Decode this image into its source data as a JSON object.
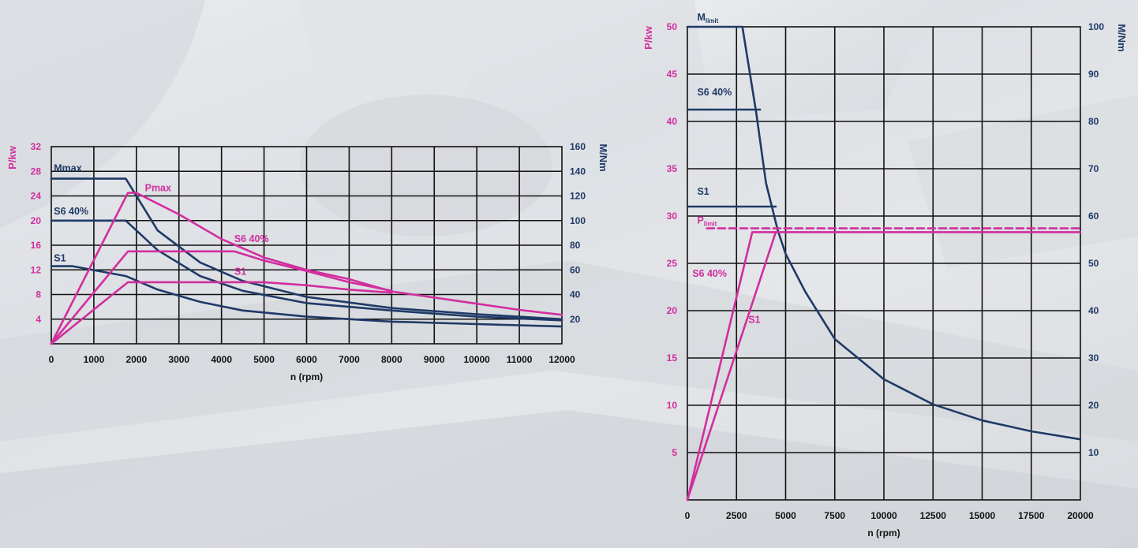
{
  "colors": {
    "torque": "#1f3a66",
    "power": "#d12e9e",
    "grid": "#111111"
  },
  "chart_data": [
    {
      "type": "line",
      "xlabel": "n (rpm)",
      "ylabel_left": "P/kw",
      "ylabel_right": "M/Nm",
      "xlim": [
        0,
        12000
      ],
      "ylim_left": [
        0,
        32
      ],
      "ylim_right": [
        0,
        160
      ],
      "x_ticks": [
        "0",
        "1000",
        "2000",
        "3000",
        "4000",
        "5000",
        "6000",
        "7000",
        "8000",
        "9000",
        "10000",
        "11000",
        "12000"
      ],
      "y_left_ticks": [
        "4",
        "8",
        "12",
        "16",
        "20",
        "24",
        "28",
        "32"
      ],
      "y_right_ticks": [
        "20",
        "40",
        "60",
        "80",
        "100",
        "120",
        "140",
        "160"
      ],
      "grid": true,
      "series": [
        {
          "name": "Mmax",
          "axis": "right",
          "color": "torque",
          "points": [
            [
              0,
              134
            ],
            [
              1750,
              134
            ],
            [
              2500,
              92
            ],
            [
              3500,
              66
            ],
            [
              4500,
              51
            ],
            [
              6000,
              38
            ],
            [
              8000,
              29
            ],
            [
              10000,
              24
            ],
            [
              12000,
              20
            ]
          ]
        },
        {
          "name": "S6 40%",
          "axis": "right",
          "color": "torque",
          "points": [
            [
              0,
              100
            ],
            [
              1750,
              100
            ],
            [
              2500,
              76
            ],
            [
              3500,
              55
            ],
            [
              4500,
              43
            ],
            [
              6000,
              33
            ],
            [
              8000,
              27
            ],
            [
              10000,
              22
            ],
            [
              12000,
              19
            ]
          ]
        },
        {
          "name": "S1",
          "axis": "right",
          "color": "torque",
          "points": [
            [
              0,
              63
            ],
            [
              500,
              63
            ],
            [
              1750,
              55
            ],
            [
              2500,
              44
            ],
            [
              3500,
              34
            ],
            [
              4500,
              27
            ],
            [
              6000,
              22
            ],
            [
              8000,
              18
            ],
            [
              10000,
              16
            ],
            [
              12000,
              14
            ]
          ]
        },
        {
          "name": "Pmax",
          "axis": "left",
          "color": "power",
          "points": [
            [
              0,
              0
            ],
            [
              1800,
              24.5
            ],
            [
              2000,
              24.5
            ],
            [
              3000,
              21
            ],
            [
              4000,
              17
            ],
            [
              5000,
              14
            ],
            [
              6000,
              12
            ],
            [
              7000,
              10.5
            ],
            [
              8000,
              8.5
            ],
            [
              9000,
              7.5
            ],
            [
              10000,
              6.5
            ],
            [
              11000,
              5.5
            ],
            [
              12000,
              4.7
            ]
          ]
        },
        {
          "name": "S6 40%",
          "axis": "left",
          "color": "power",
          "points": [
            [
              0,
              0
            ],
            [
              1800,
              15
            ],
            [
              4300,
              15
            ],
            [
              5000,
              13.5
            ],
            [
              6000,
              11.8
            ],
            [
              7000,
              10
            ],
            [
              8000,
              8.6
            ]
          ]
        },
        {
          "name": "S1",
          "axis": "left",
          "color": "power",
          "points": [
            [
              0,
              0
            ],
            [
              1800,
              10
            ],
            [
              5000,
              10
            ],
            [
              6000,
              9.5
            ],
            [
              7000,
              8.8
            ],
            [
              8000,
              8.3
            ]
          ]
        }
      ],
      "labels": [
        {
          "text": "Mmax",
          "color": "torque",
          "x": 60,
          "yr": 140
        },
        {
          "text": "S6 40%",
          "color": "torque",
          "x": 60,
          "yr": 105
        },
        {
          "text": "S1",
          "color": "torque",
          "x": 60,
          "yr": 67
        },
        {
          "text": "Pmax",
          "color": "power",
          "x": 2200,
          "yl": 24.8
        },
        {
          "text": "S6 40%",
          "color": "power",
          "x": 4300,
          "yl": 16.5
        },
        {
          "text": "S1",
          "color": "power",
          "x": 4300,
          "yl": 11.2
        }
      ]
    },
    {
      "type": "line",
      "xlabel": "n (rpm)",
      "ylabel_left": "P/kw",
      "ylabel_right": "M/Nm",
      "xlim": [
        0,
        20000
      ],
      "ylim_left": [
        0,
        50
      ],
      "ylim_right": [
        0,
        100
      ],
      "x_ticks": [
        "0",
        "2500",
        "5000",
        "7500",
        "10000",
        "12500",
        "15000",
        "17500",
        "20000"
      ],
      "y_left_ticks": [
        "5",
        "10",
        "15",
        "20",
        "25",
        "30",
        "35",
        "40",
        "45",
        "50"
      ],
      "y_right_ticks": [
        "10",
        "20",
        "30",
        "40",
        "50",
        "60",
        "70",
        "80",
        "90",
        "100"
      ],
      "grid": true,
      "series": [
        {
          "name": "Mlimit",
          "axis": "right",
          "color": "torque",
          "points": [
            [
              0,
              100
            ],
            [
              2800,
              100
            ],
            [
              3500,
              82
            ],
            [
              4000,
              67
            ],
            [
              4600,
              57
            ],
            [
              5000,
              52
            ],
            [
              6000,
              44
            ],
            [
              7500,
              34
            ],
            [
              10000,
              25.5
            ],
            [
              12500,
              20.2
            ],
            [
              15000,
              16.8
            ],
            [
              17500,
              14.5
            ],
            [
              20000,
              12.8
            ]
          ]
        },
        {
          "name": "S6 40%",
          "axis": "right",
          "color": "torque",
          "points": [
            [
              0,
              82.5
            ],
            [
              3700,
              82.5
            ]
          ]
        },
        {
          "name": "S1",
          "axis": "right",
          "color": "torque",
          "points": [
            [
              0,
              62
            ],
            [
              4500,
              62
            ]
          ]
        },
        {
          "name": "Plimit",
          "axis": "left",
          "color": "power",
          "dashed": true,
          "points": [
            [
              1000,
              28.7
            ],
            [
              20000,
              28.7
            ]
          ]
        },
        {
          "name": "S6 40%",
          "axis": "left",
          "color": "power",
          "points": [
            [
              0,
              0
            ],
            [
              3300,
              28.3
            ],
            [
              20000,
              28.3
            ]
          ]
        },
        {
          "name": "S1",
          "axis": "left",
          "color": "power",
          "points": [
            [
              0,
              0
            ],
            [
              4500,
              28.3
            ]
          ]
        }
      ],
      "labels": [
        {
          "text": "S6 40%",
          "color": "torque",
          "x": 500,
          "yr": 85.5
        },
        {
          "text": "S1",
          "color": "torque",
          "x": 500,
          "yr": 64.5
        },
        {
          "text": "S6 40%",
          "color": "power",
          "x": 250,
          "yl": 23.6
        },
        {
          "text": "S1",
          "color": "power",
          "x": 3100,
          "yl": 18.7
        }
      ],
      "special_labels": [
        {
          "main": "M",
          "sub": "limit",
          "color": "torque",
          "x": 500,
          "yr": 101.3
        },
        {
          "main": "P",
          "sub": "limit",
          "color": "power",
          "x": 500,
          "yl": 29.2
        }
      ]
    }
  ]
}
